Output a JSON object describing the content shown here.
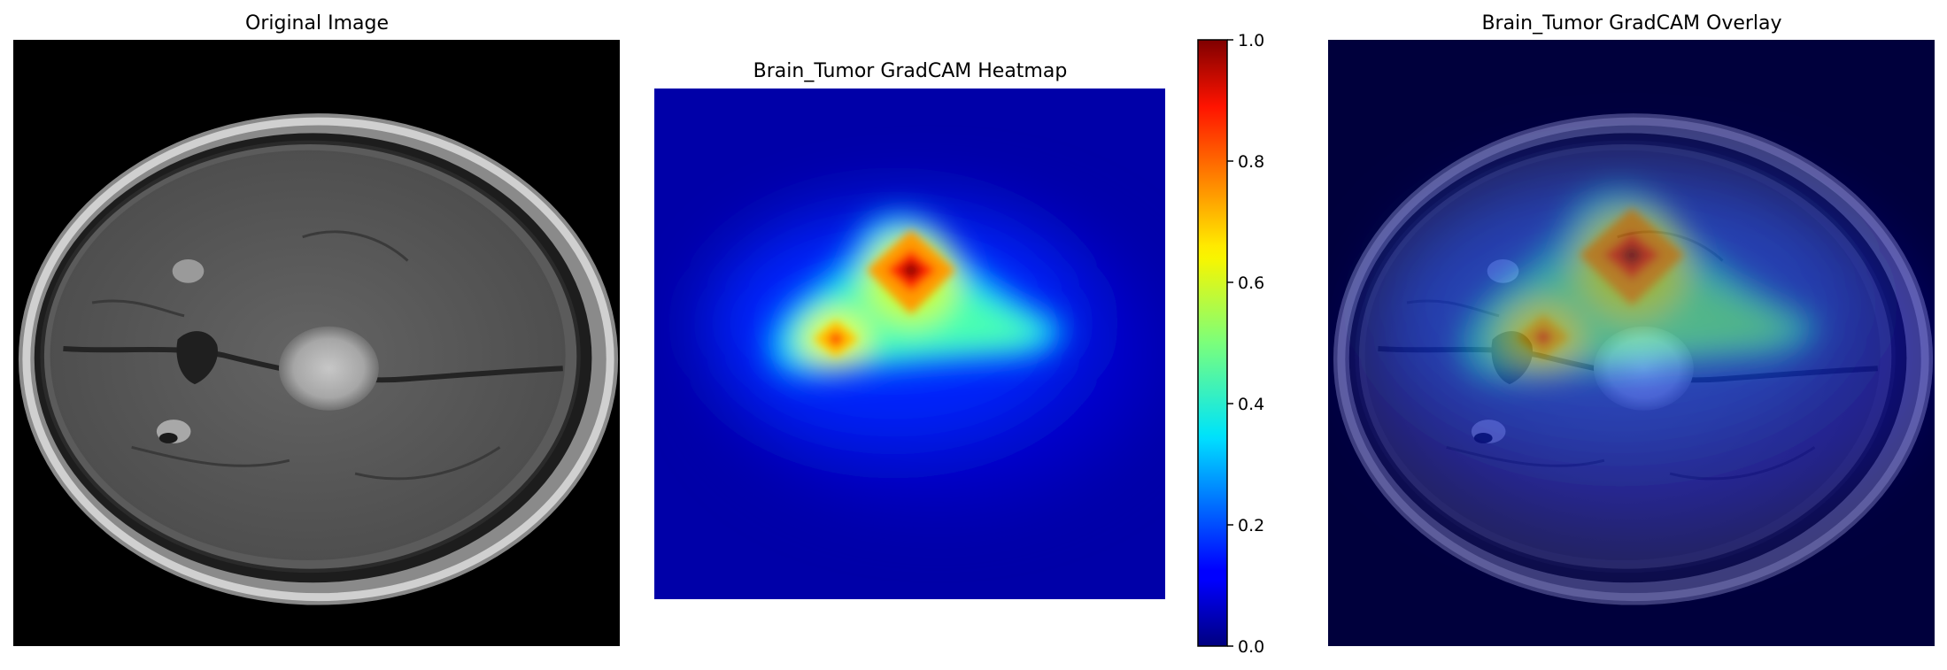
{
  "panels": [
    {
      "title": "Original Image"
    },
    {
      "title": "Brain_Tumor GradCAM Heatmap"
    },
    {
      "title": "Brain_Tumor GradCAM Overlay"
    }
  ],
  "chart_data": {
    "type": "heatmap",
    "colormap": "jet",
    "colorbar": {
      "min": 0.0,
      "max": 1.0,
      "ticks": [
        0.0,
        0.2,
        0.4,
        0.6,
        0.8,
        1.0
      ],
      "tick_labels": [
        "0.0",
        "0.2",
        "0.4",
        "0.6",
        "0.8",
        "1.0"
      ]
    },
    "activation_peaks": [
      {
        "label": "primary hotspot",
        "value": 1.0
      },
      {
        "label": "secondary hotspot",
        "value": 0.8
      },
      {
        "label": "right lobe plateau",
        "value": 0.5
      }
    ],
    "background_value": 0.08
  }
}
